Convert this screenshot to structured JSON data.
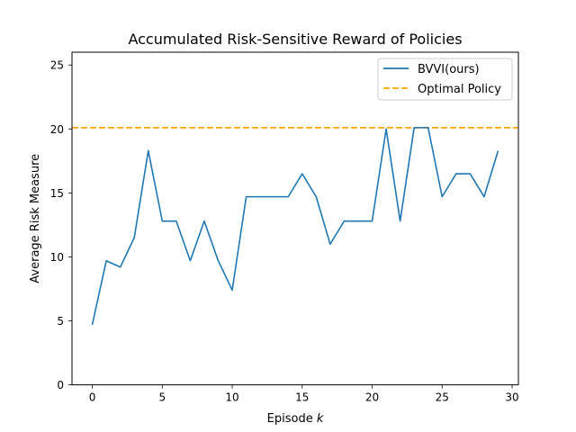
{
  "chart_data": {
    "type": "line",
    "title": "Accumulated Risk-Sensitive Reward of Policies",
    "xlabel_prefix": "Episode ",
    "xlabel_var": "k",
    "ylabel": "Average Risk Measure",
    "xlim": [
      -1.45,
      30.45
    ],
    "ylim": [
      0,
      26
    ],
    "xticks": [
      0,
      5,
      10,
      15,
      20,
      25,
      30
    ],
    "yticks": [
      0,
      5,
      10,
      15,
      20,
      25
    ],
    "grid": false,
    "legend_position": "top-right",
    "series": [
      {
        "name": "BVVI(ours)",
        "style": "solid",
        "color": "#1f77b4",
        "x": [
          0,
          1,
          2,
          3,
          4,
          5,
          6,
          7,
          8,
          9,
          10,
          11,
          12,
          13,
          14,
          15,
          16,
          17,
          18,
          19,
          20,
          21,
          22,
          23,
          24,
          25,
          26,
          27,
          28,
          29
        ],
        "values": [
          4.7,
          9.7,
          9.2,
          11.5,
          18.3,
          12.8,
          12.8,
          9.7,
          12.8,
          9.7,
          7.4,
          14.7,
          14.7,
          14.7,
          14.7,
          16.5,
          14.7,
          11.0,
          12.8,
          12.8,
          12.8,
          20.0,
          12.8,
          20.1,
          20.1,
          14.7,
          16.5,
          16.5,
          14.7,
          18.3
        ]
      },
      {
        "name": "Optimal Policy",
        "style": "dashed",
        "color": "#ffa500",
        "constant": 20.1
      }
    ]
  }
}
